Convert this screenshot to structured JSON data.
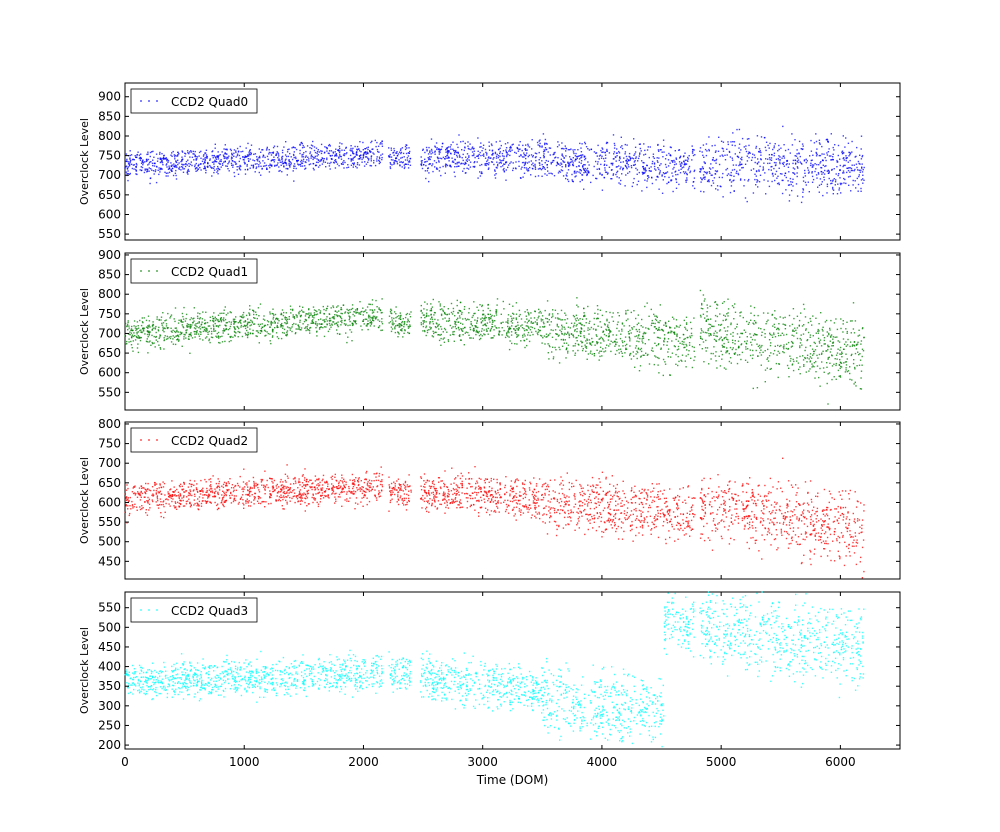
{
  "chart_data": [
    {
      "type": "scatter",
      "series": [
        {
          "name": "CCD2 Quad0",
          "color": "#0000ff"
        }
      ],
      "ylabel": "Overclock Level",
      "xlim": [
        0,
        6500
      ],
      "ylim": [
        535,
        935
      ],
      "yticks": [
        550,
        600,
        650,
        700,
        750,
        800,
        850,
        900
      ],
      "legend": "top-left",
      "segments": [
        {
          "x0": 0,
          "x1": 2160,
          "y0": 725,
          "y1": 755,
          "spread": 35
        },
        {
          "x0": 2210,
          "x1": 2400,
          "y0": 745,
          "y1": 745,
          "spread": 30
        },
        {
          "x0": 2480,
          "x1": 3500,
          "y0": 745,
          "y1": 745,
          "spread": 45
        },
        {
          "x0": 3500,
          "x1": 4780,
          "y0": 740,
          "y1": 720,
          "spread": 55
        },
        {
          "x0": 4820,
          "x1": 6200,
          "y0": 730,
          "y1": 720,
          "spread": 75
        }
      ]
    },
    {
      "type": "scatter",
      "series": [
        {
          "name": "CCD2 Quad1",
          "color": "#008000"
        }
      ],
      "ylabel": "Overclock Level",
      "xlim": [
        0,
        6500
      ],
      "ylim": [
        505,
        905
      ],
      "yticks": [
        550,
        600,
        650,
        700,
        750,
        800,
        850,
        900
      ],
      "legend": "top-left",
      "segments": [
        {
          "x0": 0,
          "x1": 2160,
          "y0": 700,
          "y1": 745,
          "spread": 40
        },
        {
          "x0": 2210,
          "x1": 2400,
          "y0": 730,
          "y1": 725,
          "spread": 35
        },
        {
          "x0": 2480,
          "x1": 3500,
          "y0": 735,
          "y1": 715,
          "spread": 50
        },
        {
          "x0": 3500,
          "x1": 4780,
          "y0": 710,
          "y1": 680,
          "spread": 70
        },
        {
          "x0": 4820,
          "x1": 6200,
          "y0": 710,
          "y1": 650,
          "spread": 90
        }
      ]
    },
    {
      "type": "scatter",
      "series": [
        {
          "name": "CCD2 Quad2",
          "color": "#ff0000"
        }
      ],
      "ylabel": "Overclock Level",
      "xlim": [
        0,
        6500
      ],
      "ylim": [
        405,
        805
      ],
      "yticks": [
        450,
        500,
        550,
        600,
        650,
        700,
        750,
        800
      ],
      "legend": "top-left",
      "segments": [
        {
          "x0": 0,
          "x1": 2160,
          "y0": 610,
          "y1": 640,
          "spread": 40
        },
        {
          "x0": 2210,
          "x1": 2400,
          "y0": 625,
          "y1": 625,
          "spread": 35
        },
        {
          "x0": 2480,
          "x1": 3500,
          "y0": 625,
          "y1": 610,
          "spread": 50
        },
        {
          "x0": 3500,
          "x1": 4780,
          "y0": 600,
          "y1": 570,
          "spread": 70
        },
        {
          "x0": 4820,
          "x1": 6200,
          "y0": 590,
          "y1": 530,
          "spread": 90
        }
      ]
    },
    {
      "type": "scatter",
      "series": [
        {
          "name": "CCD2 Quad3",
          "color": "#00ffff"
        }
      ],
      "ylabel": "Overclock Level",
      "xlabel": "Time (DOM)",
      "xlim": [
        0,
        6500
      ],
      "ylim": [
        190,
        590
      ],
      "yticks": [
        200,
        250,
        300,
        350,
        400,
        450,
        500,
        550
      ],
      "xticks": [
        0,
        1000,
        2000,
        3000,
        4000,
        5000,
        6000
      ],
      "legend": "top-left",
      "segments": [
        {
          "x0": 0,
          "x1": 2160,
          "y0": 360,
          "y1": 385,
          "spread": 45
        },
        {
          "x0": 2210,
          "x1": 2400,
          "y0": 380,
          "y1": 380,
          "spread": 45
        },
        {
          "x0": 2480,
          "x1": 3500,
          "y0": 370,
          "y1": 340,
          "spread": 60
        },
        {
          "x0": 3500,
          "x1": 4520,
          "y0": 320,
          "y1": 280,
          "spread": 90
        },
        {
          "x0": 4520,
          "x1": 4780,
          "y0": 520,
          "y1": 500,
          "spread": 75
        },
        {
          "x0": 4820,
          "x1": 6200,
          "y0": 500,
          "y1": 440,
          "spread": 100
        }
      ]
    }
  ]
}
